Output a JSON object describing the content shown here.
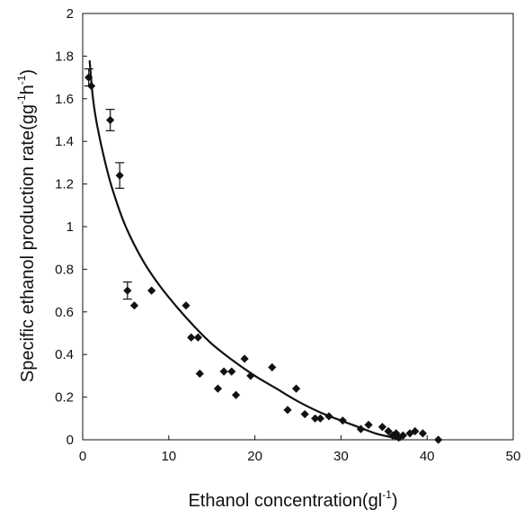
{
  "chart_data": {
    "type": "scatter",
    "xlabel": {
      "main": "Ethanol concentration(gl",
      "sup": "-1",
      "end": ")"
    },
    "ylabel": {
      "main": "Specific ethanol production rate(gg",
      "sup1": "-1",
      "mid": "h",
      "sup2": "-1",
      "end": ")"
    },
    "xlim": [
      0,
      50
    ],
    "ylim": [
      0,
      2
    ],
    "xticks": [
      0,
      10,
      20,
      30,
      40,
      50
    ],
    "yticks": [
      0,
      0.2,
      0.4,
      0.6,
      0.8,
      1,
      1.2,
      1.4,
      1.6,
      1.8,
      2
    ],
    "ytick_labels": [
      "0",
      "0.2",
      "0.4",
      "0.6",
      "0.8",
      "1",
      "1.2",
      "1.4",
      "1.6",
      "1.8",
      "2"
    ],
    "grid": false,
    "legend": "none",
    "marker": "diamond",
    "marker_color": "#111111",
    "points": [
      {
        "x": 0.7,
        "y": 1.7,
        "err": 0.04
      },
      {
        "x": 1.0,
        "y": 1.66
      },
      {
        "x": 3.2,
        "y": 1.5,
        "err": 0.05
      },
      {
        "x": 4.3,
        "y": 1.24,
        "err": 0.06
      },
      {
        "x": 5.2,
        "y": 0.7,
        "err": 0.04
      },
      {
        "x": 6.0,
        "y": 0.63
      },
      {
        "x": 8.0,
        "y": 0.7
      },
      {
        "x": 12.0,
        "y": 0.63
      },
      {
        "x": 12.6,
        "y": 0.48
      },
      {
        "x": 13.4,
        "y": 0.48
      },
      {
        "x": 13.6,
        "y": 0.31
      },
      {
        "x": 15.7,
        "y": 0.24
      },
      {
        "x": 16.4,
        "y": 0.32
      },
      {
        "x": 17.3,
        "y": 0.32
      },
      {
        "x": 17.8,
        "y": 0.21
      },
      {
        "x": 18.8,
        "y": 0.38
      },
      {
        "x": 19.5,
        "y": 0.3
      },
      {
        "x": 22.0,
        "y": 0.34
      },
      {
        "x": 23.8,
        "y": 0.14
      },
      {
        "x": 24.8,
        "y": 0.24
      },
      {
        "x": 25.8,
        "y": 0.12
      },
      {
        "x": 27.0,
        "y": 0.1
      },
      {
        "x": 27.6,
        "y": 0.1
      },
      {
        "x": 28.6,
        "y": 0.11
      },
      {
        "x": 30.2,
        "y": 0.09
      },
      {
        "x": 32.3,
        "y": 0.05
      },
      {
        "x": 33.2,
        "y": 0.07
      },
      {
        "x": 34.8,
        "y": 0.06
      },
      {
        "x": 35.5,
        "y": 0.04
      },
      {
        "x": 36.0,
        "y": 0.02
      },
      {
        "x": 36.4,
        "y": 0.03
      },
      {
        "x": 36.7,
        "y": 0.01
      },
      {
        "x": 37.2,
        "y": 0.02
      },
      {
        "x": 38.0,
        "y": 0.03
      },
      {
        "x": 38.6,
        "y": 0.04
      },
      {
        "x": 39.5,
        "y": 0.03
      },
      {
        "x": 41.3,
        "y": 0.0
      }
    ],
    "fit_curve": {
      "x": [
        0.8,
        1.2,
        1.7,
        2.5,
        3.5,
        5,
        7,
        9,
        11,
        13,
        15,
        17.5,
        20,
        22.5,
        25,
        27.5,
        30,
        32,
        34,
        35.5,
        36.5,
        37
      ],
      "y": [
        1.78,
        1.6,
        1.47,
        1.32,
        1.17,
        1.0,
        0.84,
        0.72,
        0.62,
        0.53,
        0.45,
        0.37,
        0.3,
        0.24,
        0.18,
        0.13,
        0.09,
        0.06,
        0.03,
        0.015,
        0.005,
        0.0
      ]
    }
  }
}
